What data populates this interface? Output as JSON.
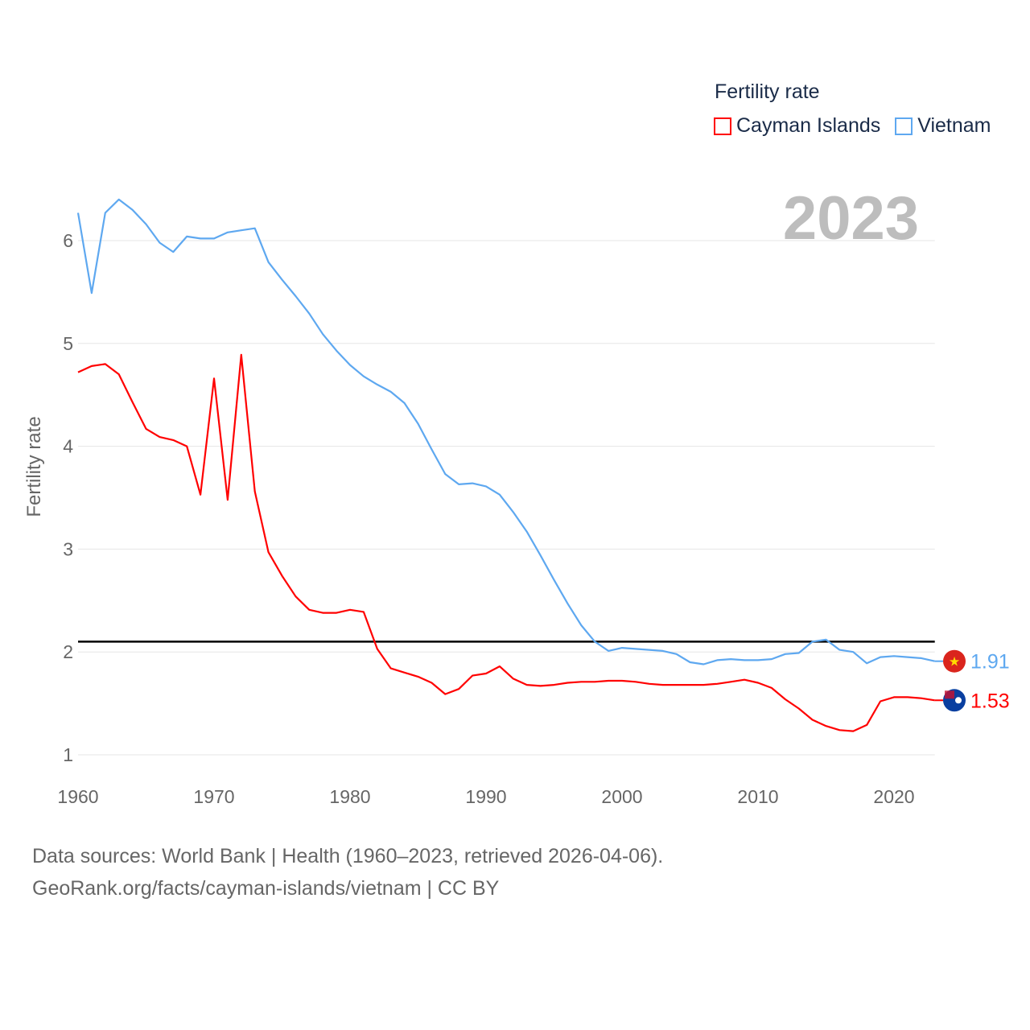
{
  "chart_data": {
    "type": "line",
    "title": "Fertility rate",
    "current_year_label": "2023",
    "ylabel": "Fertility rate",
    "xlabel": "",
    "xlim": [
      1960,
      2023
    ],
    "ylim": [
      0.8,
      6.5
    ],
    "yticks": [
      "1",
      "2",
      "3",
      "4",
      "5",
      "6"
    ],
    "xticks": [
      "1960",
      "1970",
      "1980",
      "1990",
      "2000",
      "2010",
      "2020"
    ],
    "grid": true,
    "legend_position": "top-right",
    "reference_line": 2.1,
    "x": [
      1960,
      1961,
      1962,
      1963,
      1964,
      1965,
      1966,
      1967,
      1968,
      1969,
      1970,
      1971,
      1972,
      1973,
      1974,
      1975,
      1976,
      1977,
      1978,
      1979,
      1980,
      1981,
      1982,
      1983,
      1984,
      1985,
      1986,
      1987,
      1988,
      1989,
      1990,
      1991,
      1992,
      1993,
      1994,
      1995,
      1996,
      1997,
      1998,
      1999,
      2000,
      2001,
      2002,
      2003,
      2004,
      2005,
      2006,
      2007,
      2008,
      2009,
      2010,
      2011,
      2012,
      2013,
      2014,
      2015,
      2016,
      2017,
      2018,
      2019,
      2020,
      2021,
      2022,
      2023
    ],
    "series": [
      {
        "name": "Cayman Islands",
        "color": "#ff0000",
        "end_label": "1.53",
        "values": [
          4.72,
          4.78,
          4.8,
          4.7,
          4.43,
          4.17,
          4.09,
          4.06,
          4.0,
          3.53,
          4.66,
          3.48,
          4.89,
          3.56,
          2.97,
          2.74,
          2.54,
          2.41,
          2.38,
          2.38,
          2.41,
          2.39,
          2.03,
          1.84,
          1.8,
          1.76,
          1.7,
          1.59,
          1.64,
          1.77,
          1.79,
          1.86,
          1.74,
          1.68,
          1.67,
          1.68,
          1.7,
          1.71,
          1.71,
          1.72,
          1.72,
          1.71,
          1.69,
          1.68,
          1.68,
          1.68,
          1.68,
          1.69,
          1.71,
          1.73,
          1.7,
          1.65,
          1.54,
          1.45,
          1.34,
          1.28,
          1.24,
          1.23,
          1.29,
          1.52,
          1.56,
          1.56,
          1.55,
          1.53
        ]
      },
      {
        "name": "Vietnam",
        "color": "#5ea8f0",
        "end_label": "1.91",
        "values": [
          6.27,
          5.49,
          6.27,
          6.4,
          6.3,
          6.16,
          5.98,
          5.89,
          6.04,
          6.02,
          6.02,
          6.08,
          6.1,
          6.12,
          5.79,
          5.62,
          5.46,
          5.29,
          5.09,
          4.93,
          4.79,
          4.68,
          4.6,
          4.53,
          4.42,
          4.22,
          3.97,
          3.73,
          3.63,
          3.64,
          3.61,
          3.53,
          3.36,
          3.17,
          2.94,
          2.7,
          2.47,
          2.26,
          2.1,
          2.01,
          2.04,
          2.03,
          2.02,
          2.01,
          1.98,
          1.9,
          1.88,
          1.92,
          1.93,
          1.92,
          1.92,
          1.93,
          1.98,
          1.99,
          2.1,
          2.12,
          2.02,
          2.0,
          1.89,
          1.95,
          1.96,
          1.95,
          1.94,
          1.91
        ]
      }
    ]
  },
  "footer": {
    "line1": "Data sources: World Bank | Health (1960–2023, retrieved 2026-04-06).",
    "line2": "GeoRank.org/facts/cayman-islands/vietnam | CC BY"
  }
}
